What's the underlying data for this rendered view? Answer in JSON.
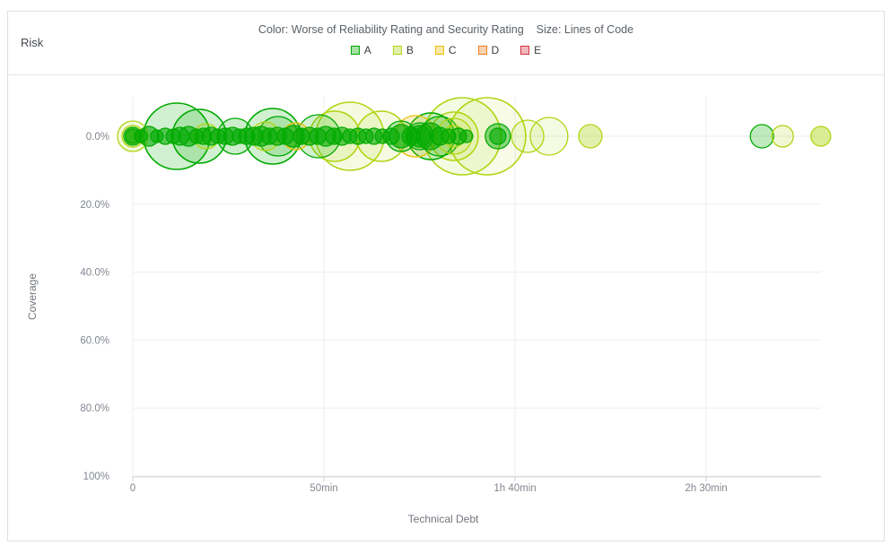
{
  "widget": {
    "title": "Risk"
  },
  "chart_header": {
    "color_label": "Color: Worse of Reliability Rating and Security Rating",
    "size_label": "Size: Lines of Code"
  },
  "legend": {
    "items": [
      {
        "label": "A",
        "color": "#00aa00"
      },
      {
        "label": "B",
        "color": "#b0d513"
      },
      {
        "label": "C",
        "color": "#eabe06"
      },
      {
        "label": "D",
        "color": "#ed7d20"
      },
      {
        "label": "E",
        "color": "#d4333f"
      }
    ]
  },
  "chart_data": {
    "type": "scatter",
    "subtype": "bubble",
    "title": "Risk",
    "color_represents": "Worse of Reliability Rating and Security Rating",
    "size_represents": "Lines of Code",
    "xlabel": "Technical Debt",
    "ylabel": "Coverage",
    "x_axis": {
      "unit": "minutes",
      "range": [
        0,
        180
      ],
      "ticks": [
        {
          "label": "0",
          "value": 0
        },
        {
          "label": "50min",
          "value": 50
        },
        {
          "label": "1h 40min",
          "value": 100
        },
        {
          "label": "2h 30min",
          "value": 150
        }
      ]
    },
    "y_axis": {
      "unit": "percent",
      "inverted": true,
      "range": [
        0,
        100
      ],
      "ticks": [
        {
          "label": "0.0%",
          "value": 0
        },
        {
          "label": "20.0%",
          "value": 20
        },
        {
          "label": "40.0%",
          "value": 40
        },
        {
          "label": "60.0%",
          "value": 60
        },
        {
          "label": "80.0%",
          "value": 80
        },
        {
          "label": "100%",
          "value": 100
        }
      ]
    },
    "rating_colors": {
      "A": "#00aa00",
      "B": "#b0d513",
      "C": "#eabe06",
      "D": "#ed7d20",
      "E": "#d4333f"
    },
    "grid": true,
    "bubbles": [
      {
        "debt_min": 0,
        "coverage_pct": 0,
        "r": 17,
        "rating": "B",
        "opacity": 0.15
      },
      {
        "debt_min": 0,
        "coverage_pct": 0,
        "r": 12,
        "rating": "B",
        "opacity": 0.2
      },
      {
        "debt_min": 0,
        "coverage_pct": 0,
        "r": 8,
        "rating": "B",
        "opacity": 0.3
      },
      {
        "debt_min": 11.5,
        "coverage_pct": 0,
        "r": 37,
        "rating": "A",
        "opacity": 0.18
      },
      {
        "debt_min": 17.4,
        "coverage_pct": 0,
        "r": 30,
        "rating": "A",
        "opacity": 0.18
      },
      {
        "debt_min": 19.2,
        "coverage_pct": 0,
        "r": 14,
        "rating": "B",
        "opacity": 0.2
      },
      {
        "debt_min": 26.8,
        "coverage_pct": 0,
        "r": 20,
        "rating": "A",
        "opacity": 0.2
      },
      {
        "debt_min": 34.7,
        "coverage_pct": 0,
        "r": 16,
        "rating": "B",
        "opacity": 0.2
      },
      {
        "debt_min": 36.6,
        "coverage_pct": 0,
        "r": 31,
        "rating": "A",
        "opacity": 0.18
      },
      {
        "debt_min": 38.0,
        "coverage_pct": 0,
        "r": 22,
        "rating": "A",
        "opacity": 0.18
      },
      {
        "debt_min": 42.7,
        "coverage_pct": 0,
        "r": 15,
        "rating": "C",
        "opacity": 0.2
      },
      {
        "debt_min": 48.6,
        "coverage_pct": 0,
        "r": 24,
        "rating": "A",
        "opacity": 0.18
      },
      {
        "debt_min": 52.8,
        "coverage_pct": 0,
        "r": 28,
        "rating": "B",
        "opacity": 0.15
      },
      {
        "debt_min": 56.8,
        "coverage_pct": 0,
        "r": 38,
        "rating": "B",
        "opacity": 0.13
      },
      {
        "debt_min": 65.0,
        "coverage_pct": 0,
        "r": 28,
        "rating": "B",
        "opacity": 0.13
      },
      {
        "debt_min": 70.2,
        "coverage_pct": 0,
        "r": 17,
        "rating": "A",
        "opacity": 0.25
      },
      {
        "debt_min": 74.0,
        "coverage_pct": 0,
        "r": 23,
        "rating": "C",
        "opacity": 0.2
      },
      {
        "debt_min": 75.1,
        "coverage_pct": 0,
        "r": 15,
        "rating": "A",
        "opacity": 0.3
      },
      {
        "debt_min": 78.0,
        "coverage_pct": 0,
        "r": 26,
        "rating": "A",
        "opacity": 0.18
      },
      {
        "debt_min": 80.3,
        "coverage_pct": 0,
        "r": 22,
        "rating": "A",
        "opacity": 0.15
      },
      {
        "debt_min": 84.0,
        "coverage_pct": 0,
        "r": 27,
        "rating": "B",
        "opacity": 0.13
      },
      {
        "debt_min": 84.0,
        "coverage_pct": 0,
        "r": 20,
        "rating": "B",
        "opacity": 0.15
      },
      {
        "debt_min": 84.0,
        "coverage_pct": 0,
        "r": 12,
        "rating": "B",
        "opacity": 0.2
      },
      {
        "debt_min": 86.2,
        "coverage_pct": 0,
        "r": 43,
        "rating": "B",
        "opacity": 0.12
      },
      {
        "debt_min": 92.7,
        "coverage_pct": 0,
        "r": 43,
        "rating": "B",
        "opacity": 0.1
      },
      {
        "debt_min": 95.5,
        "coverage_pct": 0,
        "r": 14,
        "rating": "A",
        "opacity": 0.45
      },
      {
        "debt_min": 103.3,
        "coverage_pct": 0,
        "r": 18,
        "rating": "B",
        "opacity": 0.12
      },
      {
        "debt_min": 108.9,
        "coverage_pct": 0,
        "r": 21,
        "rating": "B",
        "opacity": 0.12
      },
      {
        "debt_min": 119.7,
        "coverage_pct": 0,
        "r": 13,
        "rating": "B",
        "opacity": 0.35
      },
      {
        "debt_min": 164.6,
        "coverage_pct": 0,
        "r": 13,
        "rating": "A",
        "opacity": 0.25
      },
      {
        "debt_min": 170.0,
        "coverage_pct": 0,
        "r": 12,
        "rating": "B",
        "opacity": 0.18
      },
      {
        "debt_min": 180.0,
        "coverage_pct": 0,
        "r": 11,
        "rating": "B",
        "opacity": 0.45
      },
      {
        "debt_min": 0,
        "coverage_pct": 0,
        "r": 8,
        "rating": "A",
        "opacity": 0.6
      },
      {
        "debt_min": 0,
        "coverage_pct": 0,
        "r": 10,
        "rating": "A",
        "opacity": 0.6
      },
      {
        "debt_min": 2.1,
        "coverage_pct": 0,
        "r": 7,
        "rating": "A",
        "opacity": 0.6
      },
      {
        "debt_min": 4.2,
        "coverage_pct": 0,
        "r": 11,
        "rating": "A",
        "opacity": 0.6
      },
      {
        "debt_min": 6.3,
        "coverage_pct": 0,
        "r": 7,
        "rating": "A",
        "opacity": 0.6
      },
      {
        "debt_min": 8.5,
        "coverage_pct": 0,
        "r": 9,
        "rating": "A",
        "opacity": 0.6
      },
      {
        "debt_min": 10.6,
        "coverage_pct": 0,
        "r": 8,
        "rating": "A",
        "opacity": 0.6
      },
      {
        "debt_min": 12.4,
        "coverage_pct": 0,
        "r": 10,
        "rating": "A",
        "opacity": 0.6
      },
      {
        "debt_min": 14.6,
        "coverage_pct": 0,
        "r": 11,
        "rating": "A",
        "opacity": 0.6
      },
      {
        "debt_min": 16.7,
        "coverage_pct": 0,
        "r": 8,
        "rating": "A",
        "opacity": 0.6
      },
      {
        "debt_min": 18.5,
        "coverage_pct": 0,
        "r": 9,
        "rating": "A",
        "opacity": 0.6
      },
      {
        "debt_min": 20.4,
        "coverage_pct": 0,
        "r": 10,
        "rating": "A",
        "opacity": 0.6
      },
      {
        "debt_min": 22.3,
        "coverage_pct": 0,
        "r": 8,
        "rating": "A",
        "opacity": 0.6
      },
      {
        "debt_min": 24.2,
        "coverage_pct": 0,
        "r": 9,
        "rating": "A",
        "opacity": 0.6
      },
      {
        "debt_min": 26.1,
        "coverage_pct": 0,
        "r": 10,
        "rating": "A",
        "opacity": 0.6
      },
      {
        "debt_min": 27.9,
        "coverage_pct": 0,
        "r": 8,
        "rating": "A",
        "opacity": 0.6
      },
      {
        "debt_min": 29.8,
        "coverage_pct": 0,
        "r": 9,
        "rating": "A",
        "opacity": 0.6
      },
      {
        "debt_min": 31.7,
        "coverage_pct": 0,
        "r": 10,
        "rating": "A",
        "opacity": 0.6
      },
      {
        "debt_min": 33.6,
        "coverage_pct": 0,
        "r": 11,
        "rating": "A",
        "opacity": 0.6
      },
      {
        "debt_min": 35.7,
        "coverage_pct": 0,
        "r": 9,
        "rating": "A",
        "opacity": 0.6
      },
      {
        "debt_min": 37.8,
        "coverage_pct": 0,
        "r": 10,
        "rating": "A",
        "opacity": 0.6
      },
      {
        "debt_min": 39.9,
        "coverage_pct": 0,
        "r": 9,
        "rating": "A",
        "opacity": 0.6
      },
      {
        "debt_min": 42.0,
        "coverage_pct": 0,
        "r": 12,
        "rating": "A",
        "opacity": 0.6
      },
      {
        "debt_min": 44.1,
        "coverage_pct": 0,
        "r": 9,
        "rating": "A",
        "opacity": 0.6
      },
      {
        "debt_min": 46.2,
        "coverage_pct": 0,
        "r": 10,
        "rating": "A",
        "opacity": 0.6
      },
      {
        "debt_min": 48.4,
        "coverage_pct": 0,
        "r": 9,
        "rating": "A",
        "opacity": 0.6
      },
      {
        "debt_min": 50.5,
        "coverage_pct": 0,
        "r": 11,
        "rating": "A",
        "opacity": 0.6
      },
      {
        "debt_min": 52.6,
        "coverage_pct": 0,
        "r": 9,
        "rating": "A",
        "opacity": 0.6
      },
      {
        "debt_min": 54.7,
        "coverage_pct": 0,
        "r": 10,
        "rating": "A",
        "opacity": 0.6
      },
      {
        "debt_min": 56.8,
        "coverage_pct": 0,
        "r": 8,
        "rating": "A",
        "opacity": 0.6
      },
      {
        "debt_min": 58.9,
        "coverage_pct": 0,
        "r": 9,
        "rating": "A",
        "opacity": 0.6
      },
      {
        "debt_min": 61.0,
        "coverage_pct": 0,
        "r": 8,
        "rating": "A",
        "opacity": 0.6
      },
      {
        "debt_min": 63.1,
        "coverage_pct": 0,
        "r": 9,
        "rating": "A",
        "opacity": 0.6
      },
      {
        "debt_min": 65.3,
        "coverage_pct": 0,
        "r": 8,
        "rating": "A",
        "opacity": 0.6
      },
      {
        "debt_min": 67.6,
        "coverage_pct": 0,
        "r": 9,
        "rating": "A",
        "opacity": 0.6
      },
      {
        "debt_min": 70.2,
        "coverage_pct": 0,
        "r": 13,
        "rating": "A",
        "opacity": 0.6
      },
      {
        "debt_min": 72.8,
        "coverage_pct": 0,
        "r": 10,
        "rating": "A",
        "opacity": 0.6
      },
      {
        "debt_min": 75.1,
        "coverage_pct": 0,
        "r": 12,
        "rating": "A",
        "opacity": 0.6
      },
      {
        "debt_min": 77.7,
        "coverage_pct": 0,
        "r": 15,
        "rating": "A",
        "opacity": 0.6
      },
      {
        "debt_min": 80.3,
        "coverage_pct": 0,
        "r": 10,
        "rating": "A",
        "opacity": 0.6
      },
      {
        "debt_min": 82.6,
        "coverage_pct": 0,
        "r": 8,
        "rating": "A",
        "opacity": 0.6
      },
      {
        "debt_min": 85.2,
        "coverage_pct": 0,
        "r": 9,
        "rating": "A",
        "opacity": 0.6
      },
      {
        "debt_min": 87.3,
        "coverage_pct": 0,
        "r": 7,
        "rating": "A",
        "opacity": 0.6
      },
      {
        "debt_min": 95.5,
        "coverage_pct": 0,
        "r": 9,
        "rating": "A",
        "opacity": 0.6
      }
    ]
  }
}
